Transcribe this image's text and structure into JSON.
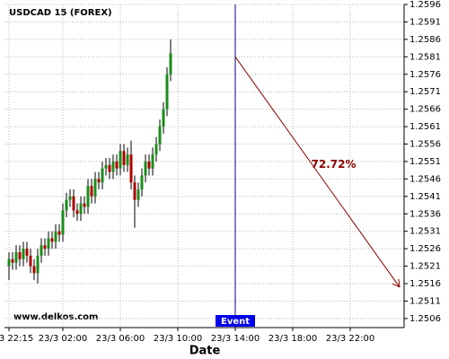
{
  "chart_data": {
    "type": "candlestick",
    "title": "USDCAD 15 (FOREX)",
    "watermark": "www.delkos.com",
    "x_label": "Date",
    "x": [
      0,
      1,
      2,
      3,
      4,
      5,
      6,
      7,
      8,
      9,
      10,
      11,
      12,
      13,
      14,
      15,
      16,
      17,
      18,
      19,
      20,
      21,
      22,
      23,
      24,
      25,
      26,
      27,
      28,
      29,
      30,
      31,
      32,
      33,
      34,
      35,
      36,
      37,
      38,
      39,
      40,
      41,
      42,
      43,
      44,
      45
    ],
    "open": [
      1.2521,
      1.2523,
      1.2522,
      1.2525,
      1.2523,
      1.2526,
      1.2524,
      1.2521,
      1.2519,
      1.2524,
      1.2527,
      1.2526,
      1.2529,
      1.2528,
      1.2531,
      1.253,
      1.2537,
      1.254,
      1.2541,
      1.2537,
      1.2536,
      1.2539,
      1.2538,
      1.2544,
      1.2541,
      1.2546,
      1.2545,
      1.2549,
      1.255,
      1.2548,
      1.2551,
      1.2549,
      1.2554,
      1.255,
      1.2553,
      1.2545,
      1.254,
      1.2543,
      1.2547,
      1.2551,
      1.2549,
      1.2553,
      1.2556,
      1.2561,
      1.2566,
      1.2576
    ],
    "high": [
      1.2525,
      1.2525,
      1.2527,
      1.2527,
      1.2528,
      1.2528,
      1.2526,
      1.2523,
      1.2526,
      1.2529,
      1.2529,
      1.2531,
      1.2531,
      1.2533,
      1.2533,
      1.2539,
      1.2542,
      1.2543,
      1.2543,
      1.2539,
      1.2541,
      1.2541,
      1.2546,
      1.2546,
      1.2548,
      1.2548,
      1.2551,
      1.2552,
      1.2552,
      1.2553,
      1.2553,
      1.2556,
      1.2556,
      1.2555,
      1.2557,
      1.2547,
      1.2545,
      1.2549,
      1.2553,
      1.2553,
      1.2555,
      1.2558,
      1.2563,
      1.2568,
      1.2578,
      1.2586
    ],
    "low": [
      1.2517,
      1.252,
      1.252,
      1.2521,
      1.2521,
      1.2522,
      1.2519,
      1.2517,
      1.2516,
      1.2522,
      1.2524,
      1.2524,
      1.2526,
      1.2526,
      1.2528,
      1.2528,
      1.2535,
      1.2538,
      1.2535,
      1.2534,
      1.2534,
      1.2536,
      1.2536,
      1.2539,
      1.2539,
      1.2543,
      1.2543,
      1.2547,
      1.2546,
      1.2546,
      1.2547,
      1.2547,
      1.2548,
      1.2548,
      1.2543,
      1.2532,
      1.2538,
      1.2541,
      1.2545,
      1.2547,
      1.2547,
      1.2551,
      1.2554,
      1.2559,
      1.2564,
      1.2574
    ],
    "close": [
      1.2523,
      1.2522,
      1.2525,
      1.2523,
      1.2526,
      1.2524,
      1.2521,
      1.2519,
      1.2524,
      1.2527,
      1.2526,
      1.2529,
      1.2528,
      1.2531,
      1.253,
      1.2537,
      1.254,
      1.2541,
      1.2537,
      1.2536,
      1.2539,
      1.2538,
      1.2544,
      1.2541,
      1.2546,
      1.2545,
      1.2549,
      1.255,
      1.2548,
      1.2551,
      1.2549,
      1.2554,
      1.255,
      1.2553,
      1.2545,
      1.254,
      1.2543,
      1.2547,
      1.2551,
      1.2549,
      1.2553,
      1.2556,
      1.2561,
      1.2566,
      1.2576,
      1.2582
    ],
    "up_color": "#1a8c1a",
    "down_color": "#b00000",
    "xlim": [
      -1.25,
      110
    ],
    "xticks": [
      {
        "value": 0,
        "label": "23/3 22:15"
      },
      {
        "value": 15,
        "label": "23/3 02:00"
      },
      {
        "value": 31,
        "label": "23/3 06:00"
      },
      {
        "value": 47,
        "label": "23/3 10:00"
      },
      {
        "value": 63,
        "label": "23/3 14:00"
      },
      {
        "value": 79,
        "label": "23/3 18:00"
      },
      {
        "value": 95,
        "label": "23/3 22:00"
      }
    ],
    "ylim": [
      1.25034,
      1.2596
    ],
    "yticks": [
      1.2506,
      1.2511,
      1.2516,
      1.2521,
      1.2526,
      1.2531,
      1.2536,
      1.2541,
      1.2546,
      1.2551,
      1.2556,
      1.2561,
      1.2566,
      1.2571,
      1.2576,
      1.2581,
      1.2586,
      1.2591,
      1.2596
    ],
    "grid": true,
    "event": {
      "label": "Event",
      "x": 63,
      "start": 1.2581,
      "end_x": 108.75,
      "end": 1.2515,
      "percent_label": "72.72%",
      "line_color": "#000080",
      "arrow_color": "#8b0000",
      "label_color": "#0000ee"
    }
  }
}
